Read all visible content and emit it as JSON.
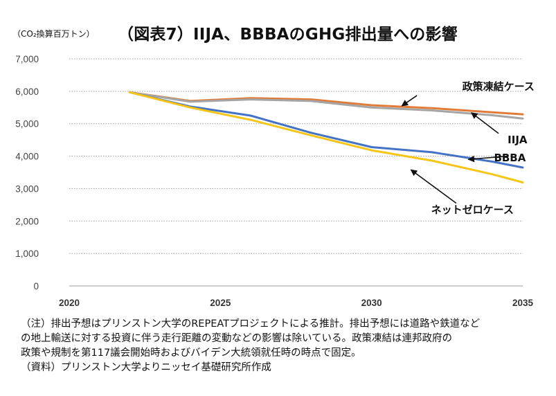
{
  "title": "（図表7）IIJA、BBBAのGHG排出量への影響",
  "unit_label": "（CO₂換算百万トン）",
  "notes": [
    "（注）排出予想はプリンストン大学のREPEATプロジェクトによる推計。排出予想には道路や鉄道など",
    "の地上輸送に対する投資に伴う走行距離の変動などの影響は除いている。政策凍結は連邦政府の",
    "政策や規制を第117議会開始時およびバイデン大統領就任時の時点で固定。",
    "（資料）プリンストン大学よりニッセイ基礎研究所作成"
  ],
  "chart_data": {
    "type": "line",
    "x": [
      2022,
      2024,
      2026,
      2028,
      2030,
      2032,
      2034,
      2035
    ],
    "xticks": [
      "2020",
      "2025",
      "2030",
      "2035"
    ],
    "xlim": [
      2020,
      2035
    ],
    "ylim": [
      0,
      7000
    ],
    "yticks": [
      "0",
      "1,000",
      "2,000",
      "3,000",
      "4,000",
      "5,000",
      "6,000",
      "7,000"
    ],
    "grid": true,
    "series": [
      {
        "name": "政策凍結ケース",
        "color": "#e07b39",
        "values": [
          5970,
          5700,
          5790,
          5750,
          5570,
          5480,
          5350,
          5290
        ]
      },
      {
        "name": "IIJA",
        "color": "#a5a5a5",
        "values": [
          5970,
          5680,
          5750,
          5700,
          5500,
          5410,
          5260,
          5160
        ]
      },
      {
        "name": "BBBA",
        "color": "#4472c4",
        "values": [
          5970,
          5530,
          5250,
          4720,
          4280,
          4120,
          3830,
          3650
        ]
      },
      {
        "name": "ネットゼロケース",
        "color": "#f5c518",
        "values": [
          5970,
          5500,
          5120,
          4640,
          4180,
          3860,
          3440,
          3190
        ]
      }
    ]
  }
}
